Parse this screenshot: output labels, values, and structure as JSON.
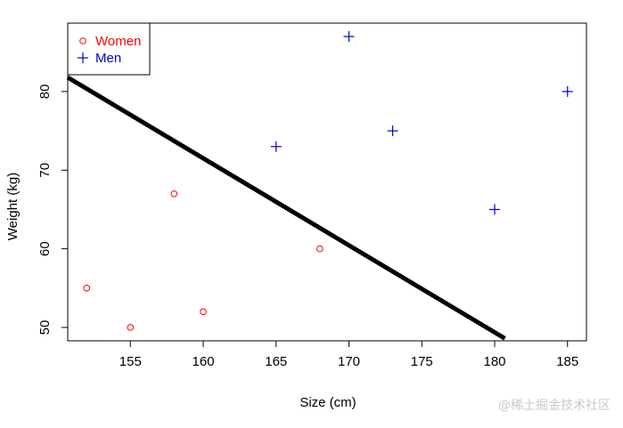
{
  "chart_data": {
    "type": "scatter",
    "xlabel": "Size (cm)",
    "ylabel": "Weight (kg)",
    "xlim": [
      150.7,
      186.3
    ],
    "ylim": [
      48.3,
      88.7
    ],
    "x_ticks": [
      155,
      160,
      165,
      170,
      175,
      180,
      185
    ],
    "y_ticks": [
      50,
      60,
      70,
      80
    ],
    "series": [
      {
        "name": "Women",
        "marker": "circle",
        "color": "#ff0000",
        "points": [
          [
            152,
            55
          ],
          [
            155,
            50
          ],
          [
            158,
            67
          ],
          [
            160,
            52
          ],
          [
            168,
            60
          ]
        ]
      },
      {
        "name": "Men",
        "marker": "plus",
        "color": "#0000cd",
        "points": [
          [
            165,
            73
          ],
          [
            170,
            87
          ],
          [
            173,
            75
          ],
          [
            180,
            65
          ],
          [
            185,
            80
          ]
        ]
      }
    ],
    "line": {
      "from": [
        150.7,
        81.8
      ],
      "to": [
        180.7,
        48.6
      ],
      "color": "#000000"
    },
    "legend_position": "top-left"
  },
  "watermark": "@稀土掘金技术社区"
}
